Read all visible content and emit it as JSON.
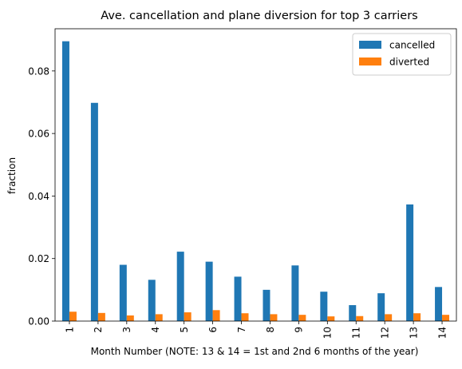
{
  "chart_data": {
    "type": "bar",
    "title": "Ave. cancellation and plane diversion for top 3 carriers",
    "xlabel": "Month Number (NOTE: 13 & 14 = 1st and 2nd 6 months of the year)",
    "ylabel": "fraction",
    "categories": [
      "1",
      "2",
      "3",
      "4",
      "5",
      "6",
      "7",
      "8",
      "9",
      "10",
      "11",
      "12",
      "13",
      "14"
    ],
    "series": [
      {
        "name": "cancelled",
        "color": "#1f77b4",
        "values": [
          0.0895,
          0.0698,
          0.018,
          0.0132,
          0.0222,
          0.019,
          0.0142,
          0.01,
          0.0178,
          0.0094,
          0.0051,
          0.0089,
          0.0373,
          0.0109
        ]
      },
      {
        "name": "diverted",
        "color": "#ff7f0e",
        "values": [
          0.003,
          0.0026,
          0.0018,
          0.0022,
          0.0028,
          0.0035,
          0.0025,
          0.0022,
          0.002,
          0.0015,
          0.0016,
          0.0022,
          0.0025,
          0.002
        ]
      }
    ],
    "ylim": [
      0,
      0.0935
    ],
    "yticks": [
      0.0,
      0.02,
      0.04,
      0.06,
      0.08
    ],
    "ytick_labels": [
      "0.00",
      "0.02",
      "0.04",
      "0.06",
      "0.08"
    ],
    "grid": false,
    "legend_position": "top-right"
  }
}
